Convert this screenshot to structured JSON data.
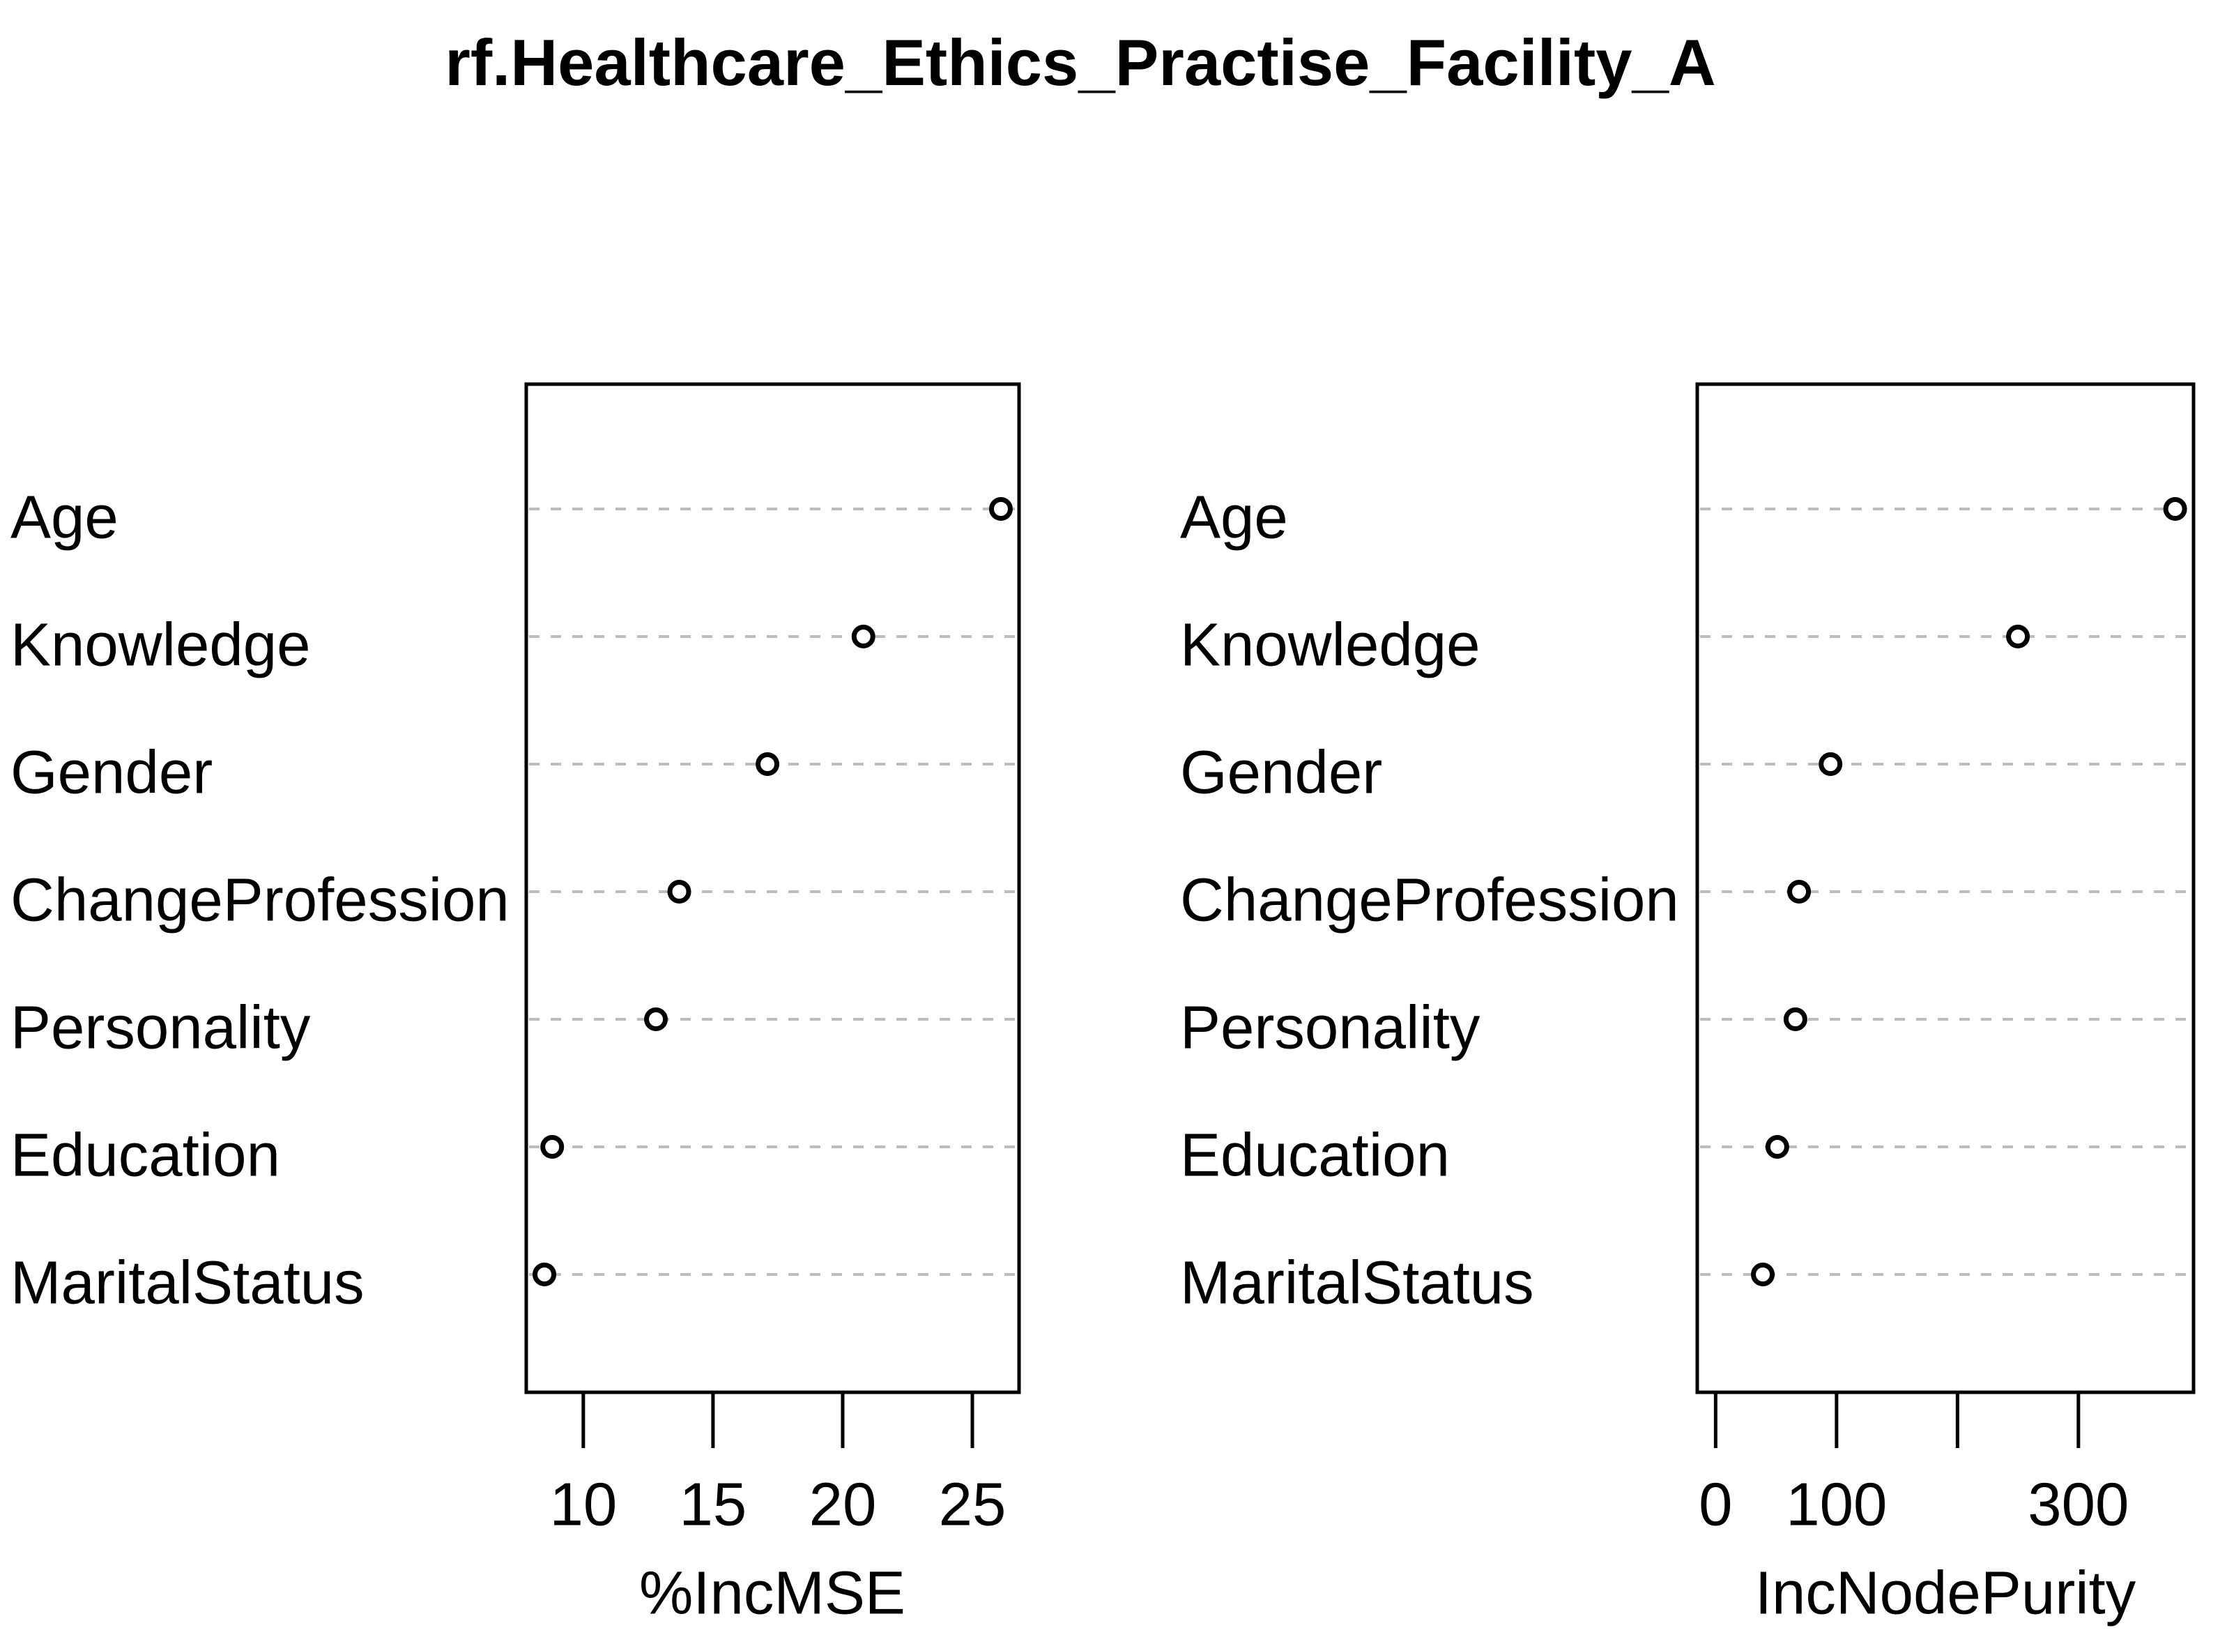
{
  "title": "rf.Healthcare_Ethics_Practise_Facility_A",
  "colors": {
    "background": "#ffffff",
    "text": "#000000",
    "grid": "#bdbdbd",
    "point_stroke": "#000000",
    "point_fill": "#ffffff",
    "box_border": "#000000"
  },
  "chart_data": [
    {
      "type": "scatter",
      "subtype": "dot-plot",
      "panel": "left",
      "title": "",
      "xlabel": "%IncMSE",
      "ylabel": "",
      "categories_top_to_bottom": [
        "Age",
        "Knowledge",
        "Gender",
        "ChangeProfession",
        "Personality",
        "Education",
        "MaritalStatus"
      ],
      "values": [
        26.1,
        20.8,
        17.1,
        13.7,
        12.8,
        8.8,
        8.5
      ],
      "xlim": [
        7.8,
        26.8
      ],
      "xticks": [
        10,
        15,
        20,
        25
      ],
      "xtick_labels": [
        "10",
        "15",
        "20",
        "25"
      ],
      "grid": "horizontal-dashed",
      "point_style": "open-circle",
      "legend": "none"
    },
    {
      "type": "scatter",
      "subtype": "dot-plot",
      "panel": "right",
      "title": "",
      "xlabel": "IncNodePurity",
      "ylabel": "",
      "categories_top_to_bottom": [
        "Age",
        "Knowledge",
        "Gender",
        "ChangeProfession",
        "Personality",
        "Education",
        "MaritalStatus"
      ],
      "values": [
        380,
        250,
        95,
        69,
        66,
        51,
        39
      ],
      "xlim": [
        -15.2,
        395.2
      ],
      "xticks": [
        0,
        100,
        200,
        300
      ],
      "xtick_labels": [
        "0",
        "100",
        "",
        "300"
      ],
      "grid": "horizontal-dashed",
      "point_style": "open-circle",
      "legend": "none"
    }
  ]
}
